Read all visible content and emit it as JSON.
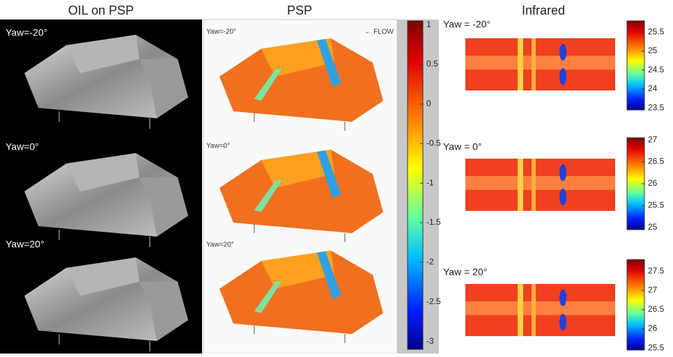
{
  "panels": {
    "oil": {
      "title": "OIL on PSP",
      "labels": [
        "Yaw=-20°",
        "Yaw=0°",
        "Yaw=20°"
      ]
    },
    "psp": {
      "title": "PSP",
      "labels": [
        "Yaw=-20°",
        "Yaw=0°",
        "Yaw=20°"
      ],
      "flow": "← FLOW",
      "colorbar": {
        "lim": [
          1.05,
          -3.1
        ],
        "ticks": [
          1,
          0.5,
          0,
          -0.5,
          -1,
          -1.5,
          -2,
          -2.5,
          -3
        ]
      }
    },
    "infrared": {
      "title": "Infrared",
      "labels": [
        "Yaw = -20°",
        "Yaw = 0°",
        "Yaw = 20°"
      ],
      "colorbars": [
        {
          "lim": [
            25.8,
            23.45
          ],
          "ticks": [
            25.5,
            25,
            24.5,
            24,
            23.5
          ]
        },
        {
          "lim": [
            27.05,
            24.95
          ],
          "ticks": [
            27,
            26.5,
            26,
            25.5,
            25
          ]
        },
        {
          "lim": [
            27.8,
            25.45
          ],
          "ticks": [
            27.5,
            27,
            26.5,
            26,
            25.5
          ]
        }
      ]
    }
  }
}
